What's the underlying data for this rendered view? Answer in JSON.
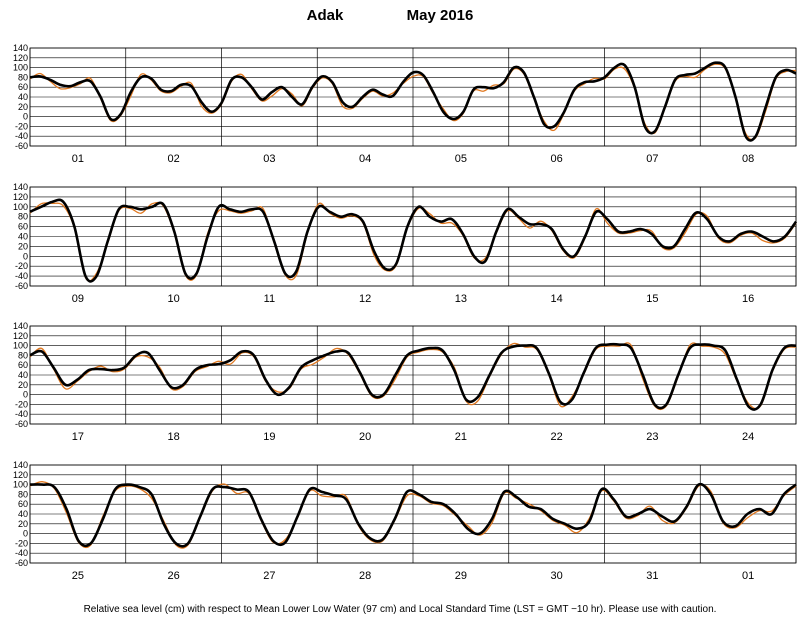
{
  "header": {
    "station": "Adak",
    "period": "May  2016"
  },
  "footer": {
    "note": "Relative sea level (cm) with respect to Mean Lower Low Water (97 cm) and Local Standard Time (LST = GMT −10 hr). Please use with caution."
  },
  "colors": {
    "observed": "#000000",
    "predicted": "#e07820",
    "grid": "#000000"
  },
  "chart_data": {
    "type": "line",
    "y_ticks": [
      140,
      120,
      100,
      80,
      60,
      40,
      20,
      0,
      -20,
      -40,
      -60
    ],
    "ylim": [
      -60,
      140
    ],
    "grid": true,
    "series_names": [
      "observed",
      "predicted"
    ],
    "panels": [
      {
        "day_labels": [
          "01",
          "02",
          "03",
          "04",
          "05",
          "06",
          "07",
          "08"
        ],
        "observed": [
          80,
          82,
          75,
          65,
          62,
          70,
          72,
          40,
          -5,
          5,
          50,
          80,
          78,
          55,
          52,
          65,
          62,
          30,
          10,
          28,
          75,
          80,
          60,
          35,
          50,
          60,
          40,
          25,
          60,
          82,
          70,
          30,
          20,
          40,
          55,
          45,
          42,
          70,
          90,
          85,
          50,
          10,
          -5,
          10,
          55,
          60,
          58,
          70,
          100,
          90,
          40,
          -15,
          -20,
          10,
          55,
          70,
          72,
          80,
          100,
          105,
          60,
          -20,
          -30,
          20,
          75,
          85,
          88,
          100,
          110,
          100,
          40,
          -40,
          -40,
          20,
          80,
          95,
          88
        ]
      },
      {
        "day_labels": [
          "09",
          "10",
          "11",
          "12",
          "13",
          "14",
          "15",
          "16"
        ],
        "observed": [
          90,
          100,
          110,
          110,
          60,
          -40,
          -40,
          30,
          95,
          100,
          95,
          100,
          105,
          50,
          -35,
          -35,
          40,
          100,
          95,
          90,
          95,
          90,
          30,
          -35,
          -30,
          50,
          100,
          90,
          80,
          85,
          70,
          10,
          -25,
          -15,
          60,
          100,
          80,
          70,
          75,
          45,
          0,
          -10,
          50,
          95,
          80,
          65,
          65,
          55,
          15,
          0,
          40,
          90,
          75,
          50,
          50,
          55,
          45,
          20,
          20,
          55,
          88,
          75,
          40,
          30,
          45,
          50,
          40,
          30,
          40,
          70
        ]
      },
      {
        "day_labels": [
          "17",
          "18",
          "19",
          "20",
          "21",
          "22",
          "23",
          "24"
        ],
        "observed": [
          80,
          88,
          55,
          20,
          30,
          50,
          52,
          50,
          55,
          80,
          85,
          50,
          15,
          20,
          50,
          60,
          62,
          70,
          88,
          80,
          30,
          0,
          15,
          55,
          70,
          80,
          88,
          85,
          45,
          0,
          0,
          40,
          80,
          90,
          95,
          90,
          50,
          -10,
          -5,
          40,
          85,
          98,
          100,
          95,
          45,
          -15,
          -10,
          45,
          95,
          102,
          102,
          95,
          40,
          -20,
          -20,
          40,
          95,
          102,
          100,
          90,
          30,
          -25,
          -20,
          50,
          95,
          100
        ]
      },
      {
        "day_labels": [
          "25",
          "26",
          "27",
          "28",
          "29",
          "30",
          "31",
          "01"
        ],
        "observed": [
          100,
          100,
          95,
          50,
          -15,
          -20,
          30,
          90,
          100,
          95,
          80,
          20,
          -20,
          -20,
          35,
          90,
          95,
          90,
          85,
          30,
          -15,
          -18,
          35,
          90,
          85,
          78,
          70,
          20,
          -10,
          -12,
          30,
          85,
          80,
          65,
          60,
          40,
          10,
          0,
          30,
          85,
          75,
          55,
          50,
          30,
          20,
          10,
          25,
          90,
          70,
          35,
          40,
          50,
          35,
          25,
          55,
          100,
          80,
          25,
          15,
          40,
          50,
          40,
          80,
          100
        ]
      }
    ]
  }
}
